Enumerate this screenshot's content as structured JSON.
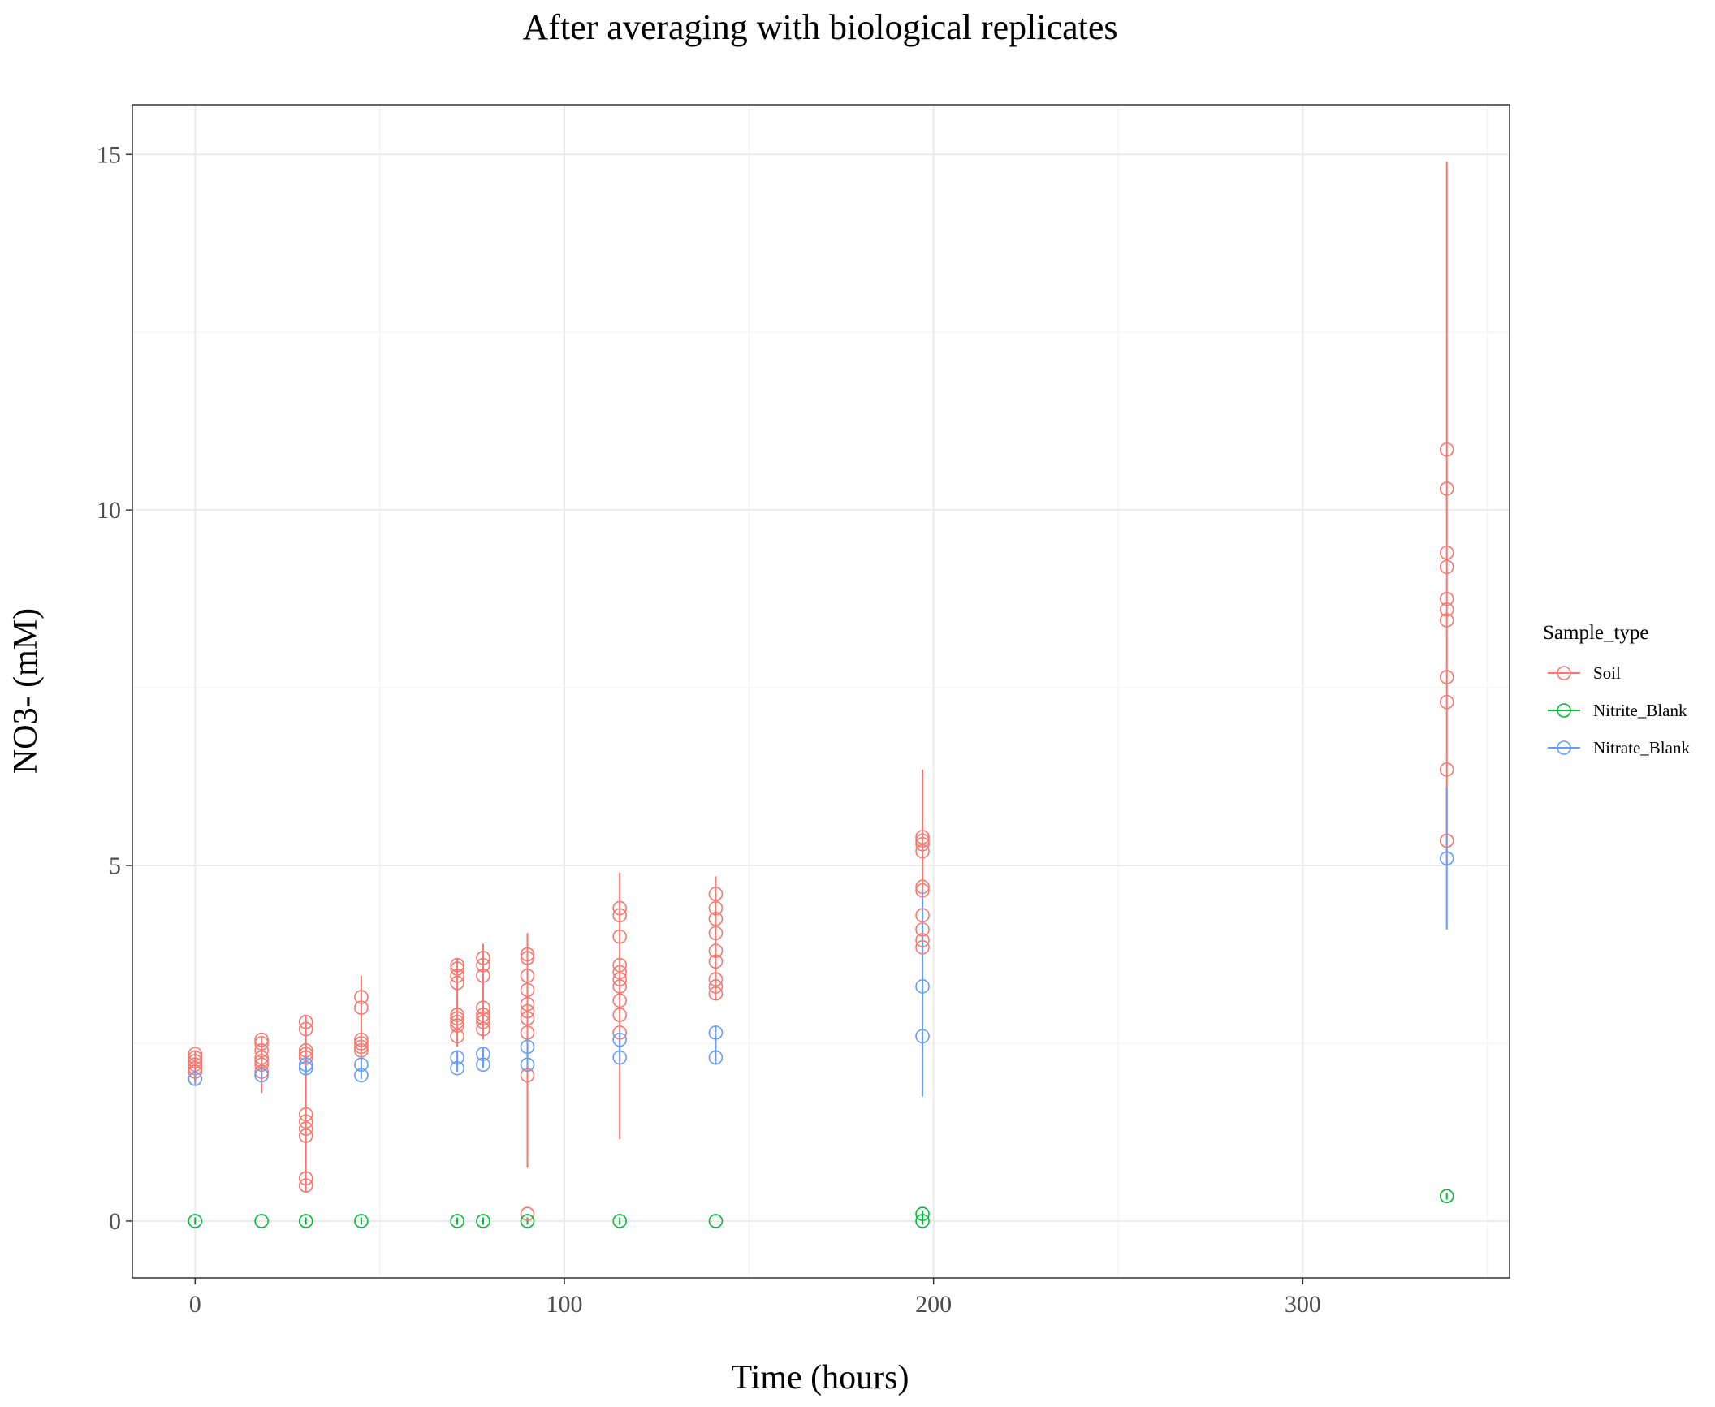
{
  "chart_data": {
    "type": "scatter",
    "title": "After averaging with biological replicates",
    "xlabel": "Time (hours)",
    "ylabel": "NO3- (mM)",
    "xlim": [
      -17,
      356
    ],
    "ylim": [
      -0.8,
      15.7
    ],
    "x_ticks": [
      0,
      100,
      200,
      300
    ],
    "y_ticks": [
      0,
      5,
      10,
      15
    ],
    "x_tick_labels": [
      "0",
      "100",
      "200",
      "300"
    ],
    "y_tick_labels": [
      "0",
      "5",
      "10",
      "15"
    ],
    "grid": true,
    "legend": {
      "title": "Sample_type",
      "placement": "right",
      "entries": [
        "Soil",
        "Nitrite_Blank",
        "Nitrate_Blank"
      ]
    },
    "series": [
      {
        "name": "Soil",
        "color": "#F8766D",
        "points": [
          [
            0,
            2.0
          ],
          [
            0,
            2.1
          ],
          [
            0,
            2.15
          ],
          [
            0,
            2.2
          ],
          [
            0,
            2.25
          ],
          [
            0,
            2.3
          ],
          [
            0,
            2.35
          ],
          [
            18,
            2.1
          ],
          [
            18,
            2.2
          ],
          [
            18,
            2.25
          ],
          [
            18,
            2.3
          ],
          [
            18,
            2.4
          ],
          [
            18,
            2.5
          ],
          [
            18,
            2.55
          ],
          [
            30,
            0.5
          ],
          [
            30,
            0.6
          ],
          [
            30,
            1.2
          ],
          [
            30,
            1.3
          ],
          [
            30,
            1.4
          ],
          [
            30,
            1.5
          ],
          [
            30,
            2.3
          ],
          [
            30,
            2.35
          ],
          [
            30,
            2.4
          ],
          [
            30,
            2.7
          ],
          [
            30,
            2.8
          ],
          [
            45,
            2.4
          ],
          [
            45,
            2.45
          ],
          [
            45,
            2.5
          ],
          [
            45,
            2.55
          ],
          [
            45,
            3.0
          ],
          [
            45,
            3.15
          ],
          [
            71,
            2.6
          ],
          [
            71,
            2.75
          ],
          [
            71,
            2.8
          ],
          [
            71,
            2.85
          ],
          [
            71,
            2.9
          ],
          [
            71,
            3.35
          ],
          [
            71,
            3.45
          ],
          [
            71,
            3.55
          ],
          [
            71,
            3.6
          ],
          [
            78,
            2.7
          ],
          [
            78,
            2.8
          ],
          [
            78,
            2.85
          ],
          [
            78,
            2.9
          ],
          [
            78,
            3.0
          ],
          [
            78,
            3.45
          ],
          [
            78,
            3.6
          ],
          [
            78,
            3.7
          ],
          [
            90,
            0.1
          ],
          [
            90,
            2.05
          ],
          [
            90,
            2.65
          ],
          [
            90,
            2.85
          ],
          [
            90,
            2.95
          ],
          [
            90,
            3.05
          ],
          [
            90,
            3.25
          ],
          [
            90,
            3.45
          ],
          [
            90,
            3.7
          ],
          [
            90,
            3.75
          ],
          [
            115,
            2.65
          ],
          [
            115,
            2.9
          ],
          [
            115,
            3.1
          ],
          [
            115,
            3.3
          ],
          [
            115,
            3.4
          ],
          [
            115,
            3.5
          ],
          [
            115,
            3.6
          ],
          [
            115,
            4.0
          ],
          [
            115,
            4.3
          ],
          [
            115,
            4.4
          ],
          [
            141,
            3.2
          ],
          [
            141,
            3.3
          ],
          [
            141,
            3.4
          ],
          [
            141,
            3.65
          ],
          [
            141,
            3.8
          ],
          [
            141,
            4.05
          ],
          [
            141,
            4.25
          ],
          [
            141,
            4.4
          ],
          [
            141,
            4.6
          ],
          [
            197,
            3.85
          ],
          [
            197,
            3.95
          ],
          [
            197,
            4.1
          ],
          [
            197,
            4.3
          ],
          [
            197,
            4.65
          ],
          [
            197,
            4.7
          ],
          [
            197,
            5.2
          ],
          [
            197,
            5.3
          ],
          [
            197,
            5.35
          ],
          [
            197,
            5.4
          ],
          [
            339,
            5.35
          ],
          [
            339,
            6.35
          ],
          [
            339,
            7.3
          ],
          [
            339,
            7.65
          ],
          [
            339,
            8.45
          ],
          [
            339,
            8.6
          ],
          [
            339,
            8.75
          ],
          [
            339,
            9.2
          ],
          [
            339,
            9.4
          ],
          [
            339,
            10.3
          ],
          [
            339,
            10.85
          ]
        ],
        "error_ranges": [
          [
            0,
            1.9,
            2.4
          ],
          [
            18,
            1.8,
            2.6
          ],
          [
            30,
            0.4,
            2.9
          ],
          [
            45,
            2.3,
            3.45
          ],
          [
            71,
            2.45,
            3.7
          ],
          [
            78,
            2.55,
            3.9
          ],
          [
            90,
            0.75,
            4.05
          ],
          [
            115,
            1.15,
            4.9
          ],
          [
            141,
            3.1,
            4.85
          ],
          [
            197,
            3.8,
            6.35
          ],
          [
            339,
            5.0,
            14.9
          ]
        ]
      },
      {
        "name": "Nitrite_Blank",
        "color": "#00BA38",
        "points": [
          [
            0,
            0.0
          ],
          [
            18,
            0.0
          ],
          [
            30,
            0.0
          ],
          [
            45,
            0.0
          ],
          [
            71,
            0.0
          ],
          [
            78,
            0.0
          ],
          [
            90,
            0.0
          ],
          [
            115,
            0.0
          ],
          [
            141,
            0.0
          ],
          [
            197,
            0.0
          ],
          [
            197,
            0.1
          ],
          [
            339,
            0.35
          ]
        ],
        "error_ranges": [
          [
            0,
            -0.05,
            0.05
          ],
          [
            30,
            -0.05,
            0.05
          ],
          [
            45,
            -0.05,
            0.05
          ],
          [
            71,
            -0.05,
            0.05
          ],
          [
            78,
            -0.05,
            0.05
          ],
          [
            90,
            -0.05,
            0.05
          ],
          [
            115,
            -0.05,
            0.05
          ],
          [
            197,
            -0.05,
            0.15
          ],
          [
            339,
            0.3,
            0.4
          ]
        ]
      },
      {
        "name": "Nitrate_Blank",
        "color": "#619CFF",
        "points": [
          [
            0,
            2.0
          ],
          [
            18,
            2.05
          ],
          [
            30,
            2.15
          ],
          [
            30,
            2.2
          ],
          [
            45,
            2.05
          ],
          [
            45,
            2.2
          ],
          [
            71,
            2.15
          ],
          [
            71,
            2.3
          ],
          [
            78,
            2.2
          ],
          [
            78,
            2.35
          ],
          [
            90,
            2.2
          ],
          [
            90,
            2.45
          ],
          [
            115,
            2.3
          ],
          [
            115,
            2.55
          ],
          [
            141,
            2.3
          ],
          [
            141,
            2.65
          ],
          [
            197,
            2.6
          ],
          [
            197,
            3.3
          ],
          [
            339,
            5.1
          ]
        ],
        "error_ranges": [
          [
            0,
            1.95,
            2.05
          ],
          [
            18,
            2.0,
            2.1
          ],
          [
            30,
            2.05,
            2.3
          ],
          [
            45,
            2.0,
            2.3
          ],
          [
            71,
            2.1,
            2.4
          ],
          [
            78,
            2.15,
            2.45
          ],
          [
            90,
            2.1,
            2.55
          ],
          [
            115,
            2.25,
            2.65
          ],
          [
            141,
            2.2,
            2.75
          ],
          [
            197,
            1.75,
            4.65
          ],
          [
            339,
            4.1,
            6.1
          ]
        ]
      }
    ]
  }
}
